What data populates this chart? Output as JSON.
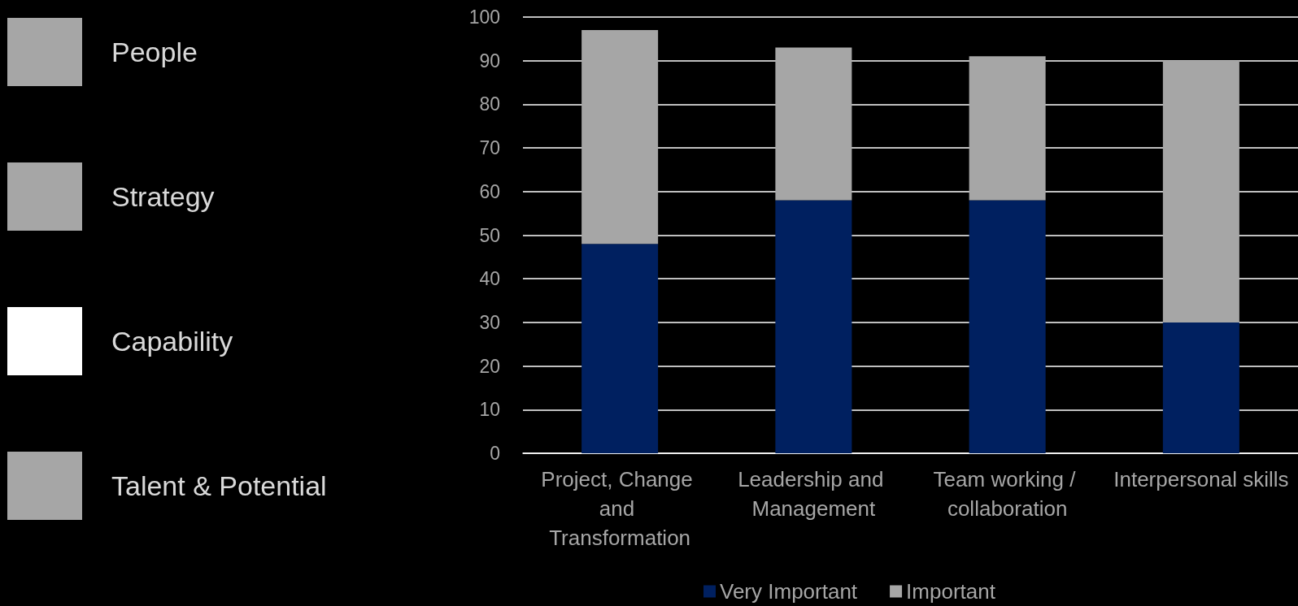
{
  "chart_data": {
    "type": "bar",
    "stacked": true,
    "categories": [
      "Project, Change and Transformation",
      "Leadership and Management",
      "Team working / collaboration",
      "Interpersonal skills"
    ],
    "series": [
      {
        "name": "Very Important",
        "color": "#002060",
        "values": [
          48,
          58,
          58,
          30
        ]
      },
      {
        "name": "Important",
        "color": "#a6a6a6",
        "values": [
          49,
          35,
          33,
          60
        ]
      }
    ],
    "ylim": [
      0,
      100
    ],
    "yticks": [
      0,
      10,
      20,
      30,
      40,
      50,
      60,
      70,
      80,
      90,
      100
    ],
    "grid": "y",
    "legend": "bottom",
    "annotations": [
      "People",
      "Strategy",
      "Capability",
      "Talent & Potential"
    ]
  }
}
